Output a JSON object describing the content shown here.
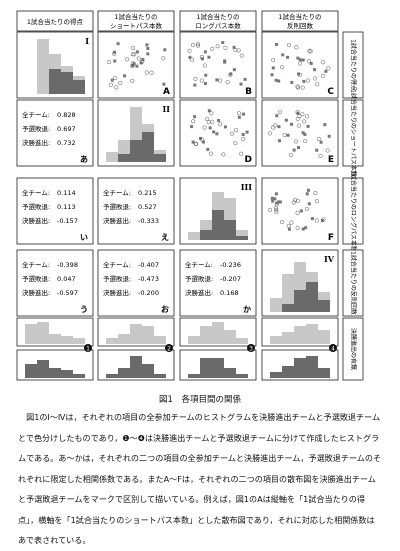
{
  "headers": [
    "1試合当たりの得点",
    "1試合当たりの\nショートパス本数",
    "1試合当たりの\nロングパス本数",
    "1試合当たりの\n反則回数"
  ],
  "row_headers": [
    "1試合当たりの得点",
    "1試合当たりのショートパス本数",
    "1試合当たりのロングパス本数",
    "1試合当たりの反則回数",
    "決勝進出の有無"
  ],
  "roman": [
    "I",
    "II",
    "III",
    "IV"
  ],
  "scatter_labels": {
    "A": "A",
    "B": "B",
    "C": "C",
    "D": "D",
    "E": "E",
    "F": "F"
  },
  "corr_blocks": [
    {
      "id": "あ",
      "all": "0.828",
      "prelim": "0.697",
      "final": "0.732"
    },
    {
      "id": "い",
      "all": "0.114",
      "prelim": "0.113",
      "final": "-0.157"
    },
    {
      "id": "え",
      "all": "0.215",
      "prelim": "0.527",
      "final": "-0.333"
    },
    {
      "id": "う",
      "all": "-0.398",
      "prelim": "0.047",
      "final": "-0.597"
    },
    {
      "id": "お",
      "all": "-0.407",
      "prelim": "-0.473",
      "final": "-0.200"
    },
    {
      "id": "か",
      "all": "-0.236",
      "prelim": "-0.207",
      "final": "0.168"
    }
  ],
  "corr_labels": {
    "all": "全チーム:",
    "prelim": "予選敗退:",
    "final": "決勝進出:"
  },
  "bottom_markers": [
    "❶",
    "❷",
    "❸",
    "❹"
  ],
  "caption": "図1　各項目間の関係",
  "paragraph": "図1のⅠ～Ⅳは，それぞれの項目の全参加チームのヒストグラムを決勝進出チームと予選敗退チームとで色分けしたものであり，❶～❹は決勝進出チームと予選敗退チームに分けて作成したヒストグラムである。あ～かは，それぞれの二つの項目の全参加チームと決勝進出チーム，予選敗退チームのそれぞれに限定した相関係数である。またA～Fは，それぞれの二つの項目の散布図を決勝進出チームと予選敗退チームをマークで区別して描いている。例えば，図1のAは縦軸を「1試合当たりの得点」，横軸を「1試合当たりのショートパス本数」とした散布図であり，それに対応した相関係数はあで表されている。",
  "colors": {
    "light": "#c8c8c8",
    "dark": "#6a6a6a",
    "frame": "#222222"
  }
}
